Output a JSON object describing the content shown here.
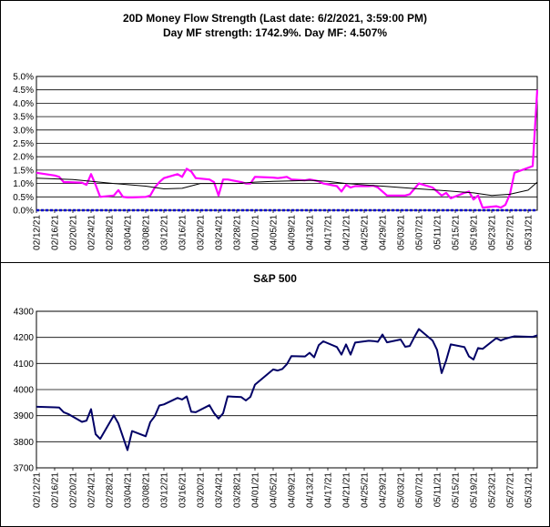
{
  "chart_data": [
    {
      "type": "line",
      "title": "20D Money Flow Strength (Last date: 6/2/2021, 3:59:00 PM)",
      "subtitle": "Day MF strength: 1742.9%. Day MF: 4.507%",
      "y_ticks": [
        "0.0%",
        "0.5%",
        "1.0%",
        "1.5%",
        "2.0%",
        "2.5%",
        "3.0%",
        "3.5%",
        "4.0%",
        "4.5%",
        "5.0%"
      ],
      "ylim": [
        0,
        5
      ],
      "x_ticks": [
        "02/12/21",
        "02/16/21",
        "02/20/21",
        "02/24/21",
        "02/28/21",
        "03/04/21",
        "03/08/21",
        "03/12/21",
        "03/16/21",
        "03/20/21",
        "03/24/21",
        "03/28/21",
        "04/01/21",
        "04/05/21",
        "04/09/21",
        "04/13/21",
        "04/17/21",
        "04/21/21",
        "04/25/21",
        "04/29/21",
        "05/03/21",
        "05/07/21",
        "05/11/21",
        "05/15/21",
        "05/19/21",
        "05/23/21",
        "05/27/21",
        "05/31/21"
      ],
      "xlim": [
        "2021-02-12",
        "2021-06-02"
      ],
      "grid": true,
      "colors": {
        "mf": "#ff00ff",
        "avg": "#000000",
        "zero": "#0000cc"
      },
      "series": [
        {
          "values": [
            [
              "2021-02-12",
              1.4
            ],
            [
              "2021-02-16",
              1.3
            ],
            [
              "2021-02-17",
              1.25
            ],
            [
              "2021-02-18",
              1.05
            ],
            [
              "2021-02-19",
              1.05
            ],
            [
              "2021-02-22",
              1.03
            ],
            [
              "2021-02-23",
              0.95
            ],
            [
              "2021-02-24",
              1.35
            ],
            [
              "2021-02-25",
              0.95
            ],
            [
              "2021-02-26",
              0.5
            ],
            [
              "2021-03-01",
              0.55
            ],
            [
              "2021-03-02",
              0.75
            ],
            [
              "2021-03-03",
              0.5
            ],
            [
              "2021-03-04",
              0.48
            ],
            [
              "2021-03-05",
              0.48
            ],
            [
              "2021-03-08",
              0.5
            ],
            [
              "2021-03-09",
              0.55
            ],
            [
              "2021-03-10",
              0.85
            ],
            [
              "2021-03-11",
              1.05
            ],
            [
              "2021-03-12",
              1.2
            ],
            [
              "2021-03-15",
              1.35
            ],
            [
              "2021-03-16",
              1.25
            ],
            [
              "2021-03-17",
              1.55
            ],
            [
              "2021-03-18",
              1.45
            ],
            [
              "2021-03-19",
              1.2
            ],
            [
              "2021-03-22",
              1.15
            ],
            [
              "2021-03-23",
              1.05
            ],
            [
              "2021-03-24",
              0.55
            ],
            [
              "2021-03-25",
              1.15
            ],
            [
              "2021-03-26",
              1.15
            ],
            [
              "2021-03-29",
              1.05
            ],
            [
              "2021-03-30",
              1.0
            ],
            [
              "2021-03-31",
              1.0
            ],
            [
              "2021-04-01",
              1.25
            ],
            [
              "2021-04-05",
              1.22
            ],
            [
              "2021-04-06",
              1.2
            ],
            [
              "2021-04-07",
              1.22
            ],
            [
              "2021-04-08",
              1.25
            ],
            [
              "2021-04-09",
              1.15
            ],
            [
              "2021-04-12",
              1.12
            ],
            [
              "2021-04-13",
              1.15
            ],
            [
              "2021-04-14",
              1.12
            ],
            [
              "2021-04-15",
              1.08
            ],
            [
              "2021-04-16",
              1.0
            ],
            [
              "2021-04-19",
              0.9
            ],
            [
              "2021-04-20",
              0.7
            ],
            [
              "2021-04-21",
              0.95
            ],
            [
              "2021-04-22",
              0.85
            ],
            [
              "2021-04-23",
              0.9
            ],
            [
              "2021-04-26",
              0.9
            ],
            [
              "2021-04-27",
              0.92
            ],
            [
              "2021-04-28",
              0.85
            ],
            [
              "2021-04-29",
              0.7
            ],
            [
              "2021-04-30",
              0.55
            ],
            [
              "2021-05-03",
              0.55
            ],
            [
              "2021-05-04",
              0.55
            ],
            [
              "2021-05-05",
              0.6
            ],
            [
              "2021-05-06",
              0.8
            ],
            [
              "2021-05-07",
              1.0
            ],
            [
              "2021-05-10",
              0.85
            ],
            [
              "2021-05-11",
              0.7
            ],
            [
              "2021-05-12",
              0.55
            ],
            [
              "2021-05-13",
              0.65
            ],
            [
              "2021-05-14",
              0.45
            ],
            [
              "2021-05-17",
              0.65
            ],
            [
              "2021-05-18",
              0.7
            ],
            [
              "2021-05-19",
              0.4
            ],
            [
              "2021-05-20",
              0.55
            ],
            [
              "2021-05-21",
              0.1
            ],
            [
              "2021-05-24",
              0.15
            ],
            [
              "2021-05-25",
              0.1
            ],
            [
              "2021-05-26",
              0.2
            ],
            [
              "2021-05-27",
              0.6
            ],
            [
              "2021-05-28",
              1.4
            ],
            [
              "2021-06-01",
              1.65
            ],
            [
              "2021-06-02",
              4.5
            ]
          ]
        },
        {
          "values": [
            [
              "2021-02-12",
              1.2
            ],
            [
              "2021-02-20",
              1.15
            ],
            [
              "2021-03-01",
              1.0
            ],
            [
              "2021-03-08",
              0.9
            ],
            [
              "2021-03-12",
              0.8
            ],
            [
              "2021-03-16",
              0.82
            ],
            [
              "2021-03-20",
              1.0
            ],
            [
              "2021-03-24",
              1.0
            ],
            [
              "2021-03-28",
              1.0
            ],
            [
              "2021-04-01",
              1.05
            ],
            [
              "2021-04-05",
              1.08
            ],
            [
              "2021-04-09",
              1.1
            ],
            [
              "2021-04-13",
              1.12
            ],
            [
              "2021-04-17",
              1.08
            ],
            [
              "2021-04-21",
              1.0
            ],
            [
              "2021-04-25",
              0.95
            ],
            [
              "2021-04-29",
              0.9
            ],
            [
              "2021-05-03",
              0.85
            ],
            [
              "2021-05-07",
              0.8
            ],
            [
              "2021-05-11",
              0.75
            ],
            [
              "2021-05-15",
              0.7
            ],
            [
              "2021-05-19",
              0.65
            ],
            [
              "2021-05-23",
              0.55
            ],
            [
              "2021-05-27",
              0.6
            ],
            [
              "2021-05-31",
              0.75
            ],
            [
              "2021-06-02",
              1.05
            ]
          ]
        },
        {
          "values": [
            [
              "2021-02-12",
              0.0
            ],
            [
              "2021-06-02",
              0.0
            ]
          ]
        }
      ]
    },
    {
      "type": "line",
      "title": "S&P 500",
      "y_ticks": [
        "3700",
        "3800",
        "3900",
        "4000",
        "4100",
        "4200",
        "4300"
      ],
      "ylim": [
        3700,
        4300
      ],
      "x_ticks": [
        "02/12/21",
        "02/16/21",
        "02/20/21",
        "02/24/21",
        "02/28/21",
        "03/04/21",
        "03/08/21",
        "03/12/21",
        "03/16/21",
        "03/20/21",
        "03/24/21",
        "03/28/21",
        "04/01/21",
        "04/05/21",
        "04/09/21",
        "04/13/21",
        "04/17/21",
        "04/21/21",
        "04/25/21",
        "04/29/21",
        "05/03/21",
        "05/07/21",
        "05/11/21",
        "05/15/21",
        "05/19/21",
        "05/23/21",
        "05/27/21",
        "05/31/21"
      ],
      "xlim": [
        "2021-02-12",
        "2021-06-02"
      ],
      "grid": true,
      "colors": {
        "spx": "#000066"
      },
      "series": [
        {
          "values": [
            [
              "2021-02-12",
              3934
            ],
            [
              "2021-02-16",
              3932
            ],
            [
              "2021-02-17",
              3931
            ],
            [
              "2021-02-18",
              3913
            ],
            [
              "2021-02-19",
              3906
            ],
            [
              "2021-02-22",
              3876
            ],
            [
              "2021-02-23",
              3881
            ],
            [
              "2021-02-24",
              3925
            ],
            [
              "2021-02-25",
              3829
            ],
            [
              "2021-02-26",
              3811
            ],
            [
              "2021-03-01",
              3901
            ],
            [
              "2021-03-02",
              3870
            ],
            [
              "2021-03-03",
              3819
            ],
            [
              "2021-03-04",
              3768
            ],
            [
              "2021-03-05",
              3841
            ],
            [
              "2021-03-08",
              3821
            ],
            [
              "2021-03-09",
              3875
            ],
            [
              "2021-03-10",
              3898
            ],
            [
              "2021-03-11",
              3939
            ],
            [
              "2021-03-12",
              3943
            ],
            [
              "2021-03-15",
              3968
            ],
            [
              "2021-03-16",
              3962
            ],
            [
              "2021-03-17",
              3974
            ],
            [
              "2021-03-18",
              3915
            ],
            [
              "2021-03-19",
              3913
            ],
            [
              "2021-03-22",
              3940
            ],
            [
              "2021-03-23",
              3910
            ],
            [
              "2021-03-24",
              3889
            ],
            [
              "2021-03-25",
              3909
            ],
            [
              "2021-03-26",
              3974
            ],
            [
              "2021-03-29",
              3971
            ],
            [
              "2021-03-30",
              3958
            ],
            [
              "2021-03-31",
              3972
            ],
            [
              "2021-04-01",
              4019
            ],
            [
              "2021-04-05",
              4077
            ],
            [
              "2021-04-06",
              4073
            ],
            [
              "2021-04-07",
              4079
            ],
            [
              "2021-04-08",
              4097
            ],
            [
              "2021-04-09",
              4128
            ],
            [
              "2021-04-12",
              4127
            ],
            [
              "2021-04-13",
              4141
            ],
            [
              "2021-04-14",
              4124
            ],
            [
              "2021-04-15",
              4170
            ],
            [
              "2021-04-16",
              4185
            ],
            [
              "2021-04-19",
              4163
            ],
            [
              "2021-04-20",
              4134
            ],
            [
              "2021-04-21",
              4173
            ],
            [
              "2021-04-22",
              4134
            ],
            [
              "2021-04-23",
              4180
            ],
            [
              "2021-04-26",
              4187
            ],
            [
              "2021-04-27",
              4186
            ],
            [
              "2021-04-28",
              4183
            ],
            [
              "2021-04-29",
              4211
            ],
            [
              "2021-04-30",
              4181
            ],
            [
              "2021-05-03",
              4192
            ],
            [
              "2021-05-04",
              4164
            ],
            [
              "2021-05-05",
              4167
            ],
            [
              "2021-05-06",
              4201
            ],
            [
              "2021-05-07",
              4232
            ],
            [
              "2021-05-10",
              4188
            ],
            [
              "2021-05-11",
              4152
            ],
            [
              "2021-05-12",
              4063
            ],
            [
              "2021-05-13",
              4112
            ],
            [
              "2021-05-14",
              4173
            ],
            [
              "2021-05-17",
              4163
            ],
            [
              "2021-05-18",
              4127
            ],
            [
              "2021-05-19",
              4115
            ],
            [
              "2021-05-20",
              4159
            ],
            [
              "2021-05-21",
              4156
            ],
            [
              "2021-05-24",
              4197
            ],
            [
              "2021-05-25",
              4188
            ],
            [
              "2021-05-26",
              4195
            ],
            [
              "2021-05-27",
              4200
            ],
            [
              "2021-05-28",
              4204
            ],
            [
              "2021-06-01",
              4202
            ],
            [
              "2021-06-02",
              4208
            ]
          ]
        }
      ]
    }
  ]
}
